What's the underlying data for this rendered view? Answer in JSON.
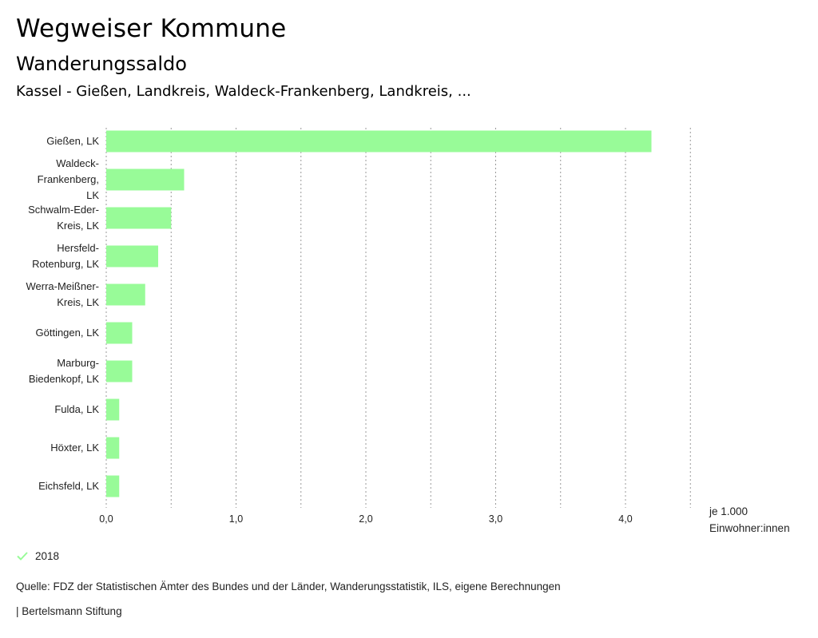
{
  "header": {
    "title": "Wegweiser Kommune",
    "subtitle": "Wanderungssaldo",
    "selection": "Kassel - Gießen, Landkreis, Waldeck-Frankenberg, Landkreis, ..."
  },
  "colors": {
    "bar": "#98fb98",
    "grid": "#999999"
  },
  "chart_data": {
    "type": "bar",
    "orientation": "horizontal",
    "title": "Wanderungssaldo",
    "categories": [
      "Gießen, LK",
      "Waldeck-Frankenberg, LK",
      "Schwalm-Eder-Kreis, LK",
      "Hersfeld-Rotenburg, LK",
      "Werra-Meißner-Kreis, LK",
      "Göttingen, LK",
      "Marburg-Biedenkopf, LK",
      "Fulda, LK",
      "Höxter, LK",
      "Eichsfeld, LK"
    ],
    "category_lines": [
      [
        "Gießen, LK"
      ],
      [
        "Waldeck-",
        "Frankenberg,",
        "LK"
      ],
      [
        "Schwalm-Eder-",
        "Kreis, LK"
      ],
      [
        "Hersfeld-",
        "Rotenburg, LK"
      ],
      [
        "Werra-Meißner-",
        "Kreis, LK"
      ],
      [
        "Göttingen, LK"
      ],
      [
        "Marburg-",
        "Biedenkopf, LK"
      ],
      [
        "Fulda, LK"
      ],
      [
        "Höxter, LK"
      ],
      [
        "Eichsfeld, LK"
      ]
    ],
    "series": [
      {
        "name": "2018",
        "values": [
          4.2,
          0.6,
          0.5,
          0.4,
          0.3,
          0.2,
          0.2,
          0.1,
          0.1,
          0.1
        ]
      }
    ],
    "xlim": [
      0,
      4.5
    ],
    "xticks": [
      0,
      1,
      2,
      3,
      4
    ],
    "xtick_labels": [
      "0,0",
      "1,0",
      "2,0",
      "3,0",
      "4,0"
    ],
    "gridlines": [
      0,
      0.5,
      1,
      1.5,
      2,
      2.5,
      3,
      3.5,
      4,
      4.5
    ],
    "xlabel_lines": [
      "je 1.000",
      "Einwohner:innen"
    ],
    "legend": "bottom-left"
  },
  "footer": {
    "source": "Quelle: FDZ der Statistischen Ämter des Bundes und der Länder, Wanderungsstatistik, ILS, eigene Berechnungen",
    "brand": "| Bertelsmann Stiftung"
  }
}
